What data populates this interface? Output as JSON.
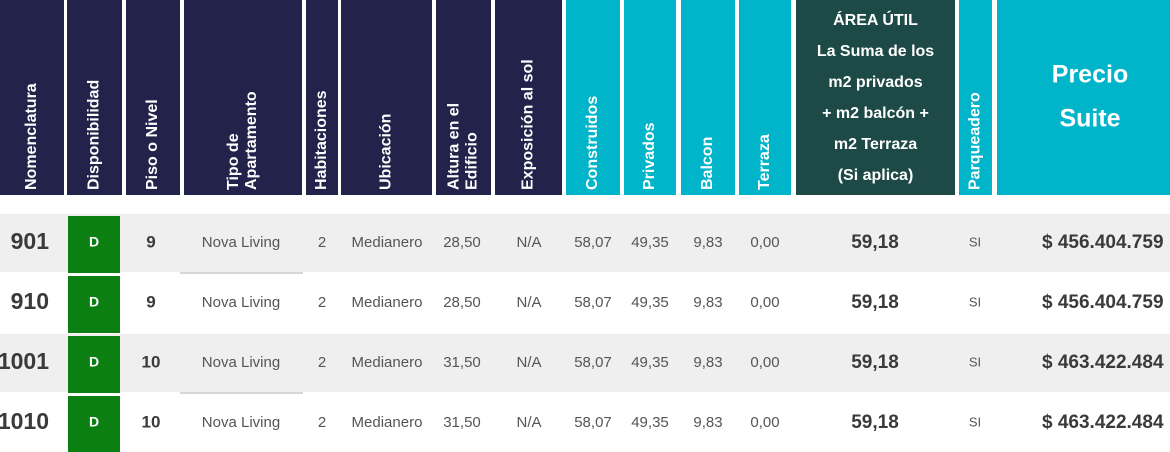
{
  "table": {
    "columns": [
      [
        "Nomenclatura"
      ],
      [
        "Disponibilidad"
      ],
      [
        "Piso o Nivel"
      ],
      [
        "Tipo de",
        "Apartamento"
      ],
      [
        "Habitaciones"
      ],
      [
        "Ubicación"
      ],
      [
        "Altura en el",
        "Edificio"
      ],
      [
        "Exposición al sol"
      ],
      [
        "Construidos"
      ],
      [
        "Privados"
      ],
      [
        "Balcon"
      ],
      [
        "Terraza"
      ],
      [
        "ÁREA ÚTIL",
        "La Suma de los",
        "m2 privados",
        "+ m2 balcón +",
        "m2 Terraza",
        "(Si aplica)"
      ],
      [
        "Parqueadero"
      ],
      [
        "Precio",
        "Suite"
      ]
    ],
    "rows": [
      [
        "901",
        "D",
        "9",
        "Nova Living",
        "2",
        "Medianero",
        "28,50",
        "N/A",
        "58,07",
        "49,35",
        "9,83",
        "0,00",
        "59,18",
        "SI",
        "$ 456.404.759"
      ],
      [
        "910",
        "D",
        "9",
        "Nova Living",
        "2",
        "Medianero",
        "28,50",
        "N/A",
        "58,07",
        "49,35",
        "9,83",
        "0,00",
        "59,18",
        "SI",
        "$ 456.404.759"
      ],
      [
        "1001",
        "D",
        "10",
        "Nova Living",
        "2",
        "Medianero",
        "31,50",
        "N/A",
        "58,07",
        "49,35",
        "9,83",
        "0,00",
        "59,18",
        "SI",
        "$ 463.422.484"
      ],
      [
        "1010",
        "D",
        "10",
        "Nova Living",
        "2",
        "Medianero",
        "31,50",
        "N/A",
        "58,07",
        "49,35",
        "9,83",
        "0,00",
        "59,18",
        "SI",
        "$ 463.422.484"
      ]
    ]
  }
}
